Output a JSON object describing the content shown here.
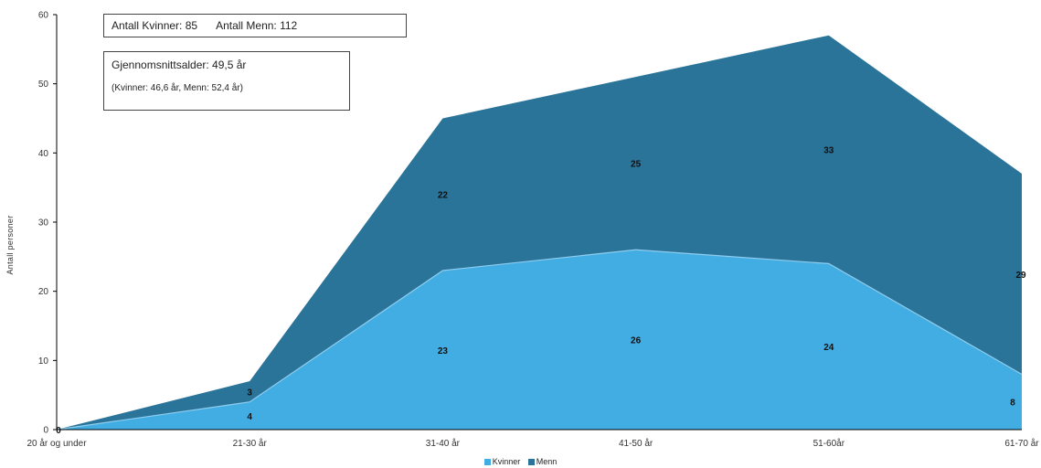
{
  "info": {
    "counts": [
      "Antall Kvinner: 85",
      "Antall Menn: 112"
    ],
    "average": "Gjennomsnittsalder: 49,5 år",
    "average_detail": "(Kvinner: 46,6 år, Menn: 52,4 år)"
  },
  "chart_data": {
    "type": "area",
    "stacked": true,
    "categories": [
      "20 år og under",
      "21-30 år",
      "31-40 år",
      "41-50 år",
      "51-60år",
      "61-70 år"
    ],
    "series": [
      {
        "name": "Kvinner",
        "values": [
          0,
          4,
          23,
          26,
          24,
          8
        ],
        "color": "#41ADE3"
      },
      {
        "name": "Menn",
        "values": [
          0,
          3,
          22,
          25,
          33,
          29
        ],
        "color": "#2A7399"
      }
    ],
    "ylabel": "Antall personer",
    "ylim": [
      0,
      60
    ],
    "yticks": [
      0,
      10,
      20,
      30,
      40,
      50,
      60
    ],
    "grid": false,
    "legend": "bottom",
    "data_labels": true
  }
}
